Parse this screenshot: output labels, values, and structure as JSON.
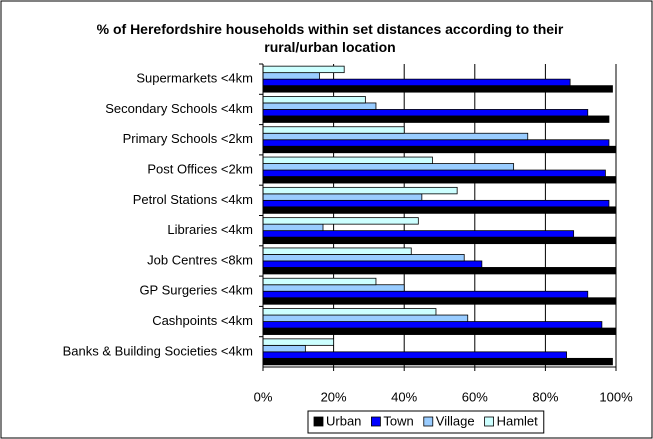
{
  "chart_data": {
    "type": "hbar",
    "title": "% of Herefordshire households within set distances according to their rural/urban location",
    "categories": [
      "Supermarkets <4km",
      "Secondary Schools <4km",
      "Primary Schools <2km",
      "Post Offices <2km",
      "Petrol Stations <4km",
      "Libraries <4km",
      "Job Centres <8km",
      "GP Surgeries <4km",
      "Cashpoints <4km",
      "Banks & Building Societies <4km"
    ],
    "series": [
      {
        "name": "Urban",
        "color": "#000000",
        "values": [
          99,
          98,
          100,
          100,
          100,
          100,
          100,
          100,
          100,
          99
        ]
      },
      {
        "name": "Town",
        "color": "#0000ff",
        "values": [
          87,
          92,
          98,
          97,
          98,
          88,
          62,
          92,
          96,
          86
        ]
      },
      {
        "name": "Village",
        "color": "#99ccff",
        "values": [
          16,
          32,
          75,
          71,
          45,
          17,
          57,
          40,
          58,
          12
        ]
      },
      {
        "name": "Hamlet",
        "color": "#ccffff",
        "values": [
          23,
          29,
          40,
          48,
          55,
          44,
          42,
          32,
          49,
          20
        ]
      }
    ],
    "xlim": [
      0,
      100
    ],
    "xticks": [
      {
        "value": 0,
        "label": "0%"
      },
      {
        "value": 20,
        "label": "20%"
      },
      {
        "value": 40,
        "label": "40%"
      },
      {
        "value": 60,
        "label": "60%"
      },
      {
        "value": 80,
        "label": "80%"
      },
      {
        "value": 100,
        "label": "100%"
      }
    ],
    "grid": true,
    "legend": "bottom"
  }
}
